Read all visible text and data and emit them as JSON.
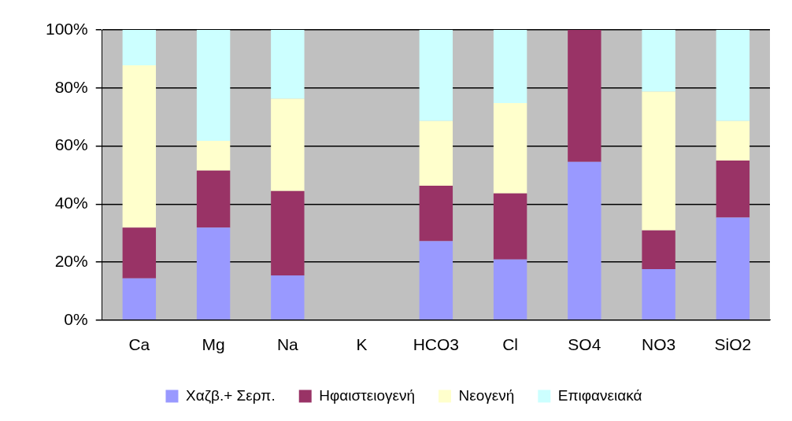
{
  "chart_data": {
    "type": "bar",
    "stacked": true,
    "categories": [
      "Ca",
      "Mg",
      "Na",
      "K",
      "HCO3",
      "Cl",
      "SO4",
      "NO3",
      "SiO2"
    ],
    "series": [
      {
        "name": "Χαζβ.+ Σερπ.",
        "color": "#9999ff",
        "values": [
          14.4,
          31.9,
          15.4,
          0,
          27.2,
          20.9,
          54.5,
          17.6,
          35.3
        ]
      },
      {
        "name": "Ηφαιστειογενή",
        "color": "#993366",
        "values": [
          17.5,
          19.6,
          29.1,
          0,
          19.1,
          22.8,
          45.5,
          13.3,
          19.7
        ]
      },
      {
        "name": "Νεογενή",
        "color": "#ffffcc",
        "values": [
          55.9,
          10.3,
          31.8,
          0,
          22.3,
          31.1,
          0,
          47.8,
          13.6
        ]
      },
      {
        "name": "Επιφανειακά",
        "color": "#ccffff",
        "values": [
          12.2,
          38.2,
          23.7,
          0,
          31.4,
          25.2,
          0,
          21.3,
          31.4
        ]
      }
    ],
    "ylim": [
      0,
      100
    ],
    "yticks": [
      {
        "value": 0,
        "label": "0%"
      },
      {
        "value": 20,
        "label": "20%"
      },
      {
        "value": 40,
        "label": "40%"
      },
      {
        "value": 60,
        "label": "60%"
      },
      {
        "value": 80,
        "label": "80%"
      },
      {
        "value": 100,
        "label": "100%"
      }
    ],
    "grid": "y",
    "legend": "bottom"
  }
}
